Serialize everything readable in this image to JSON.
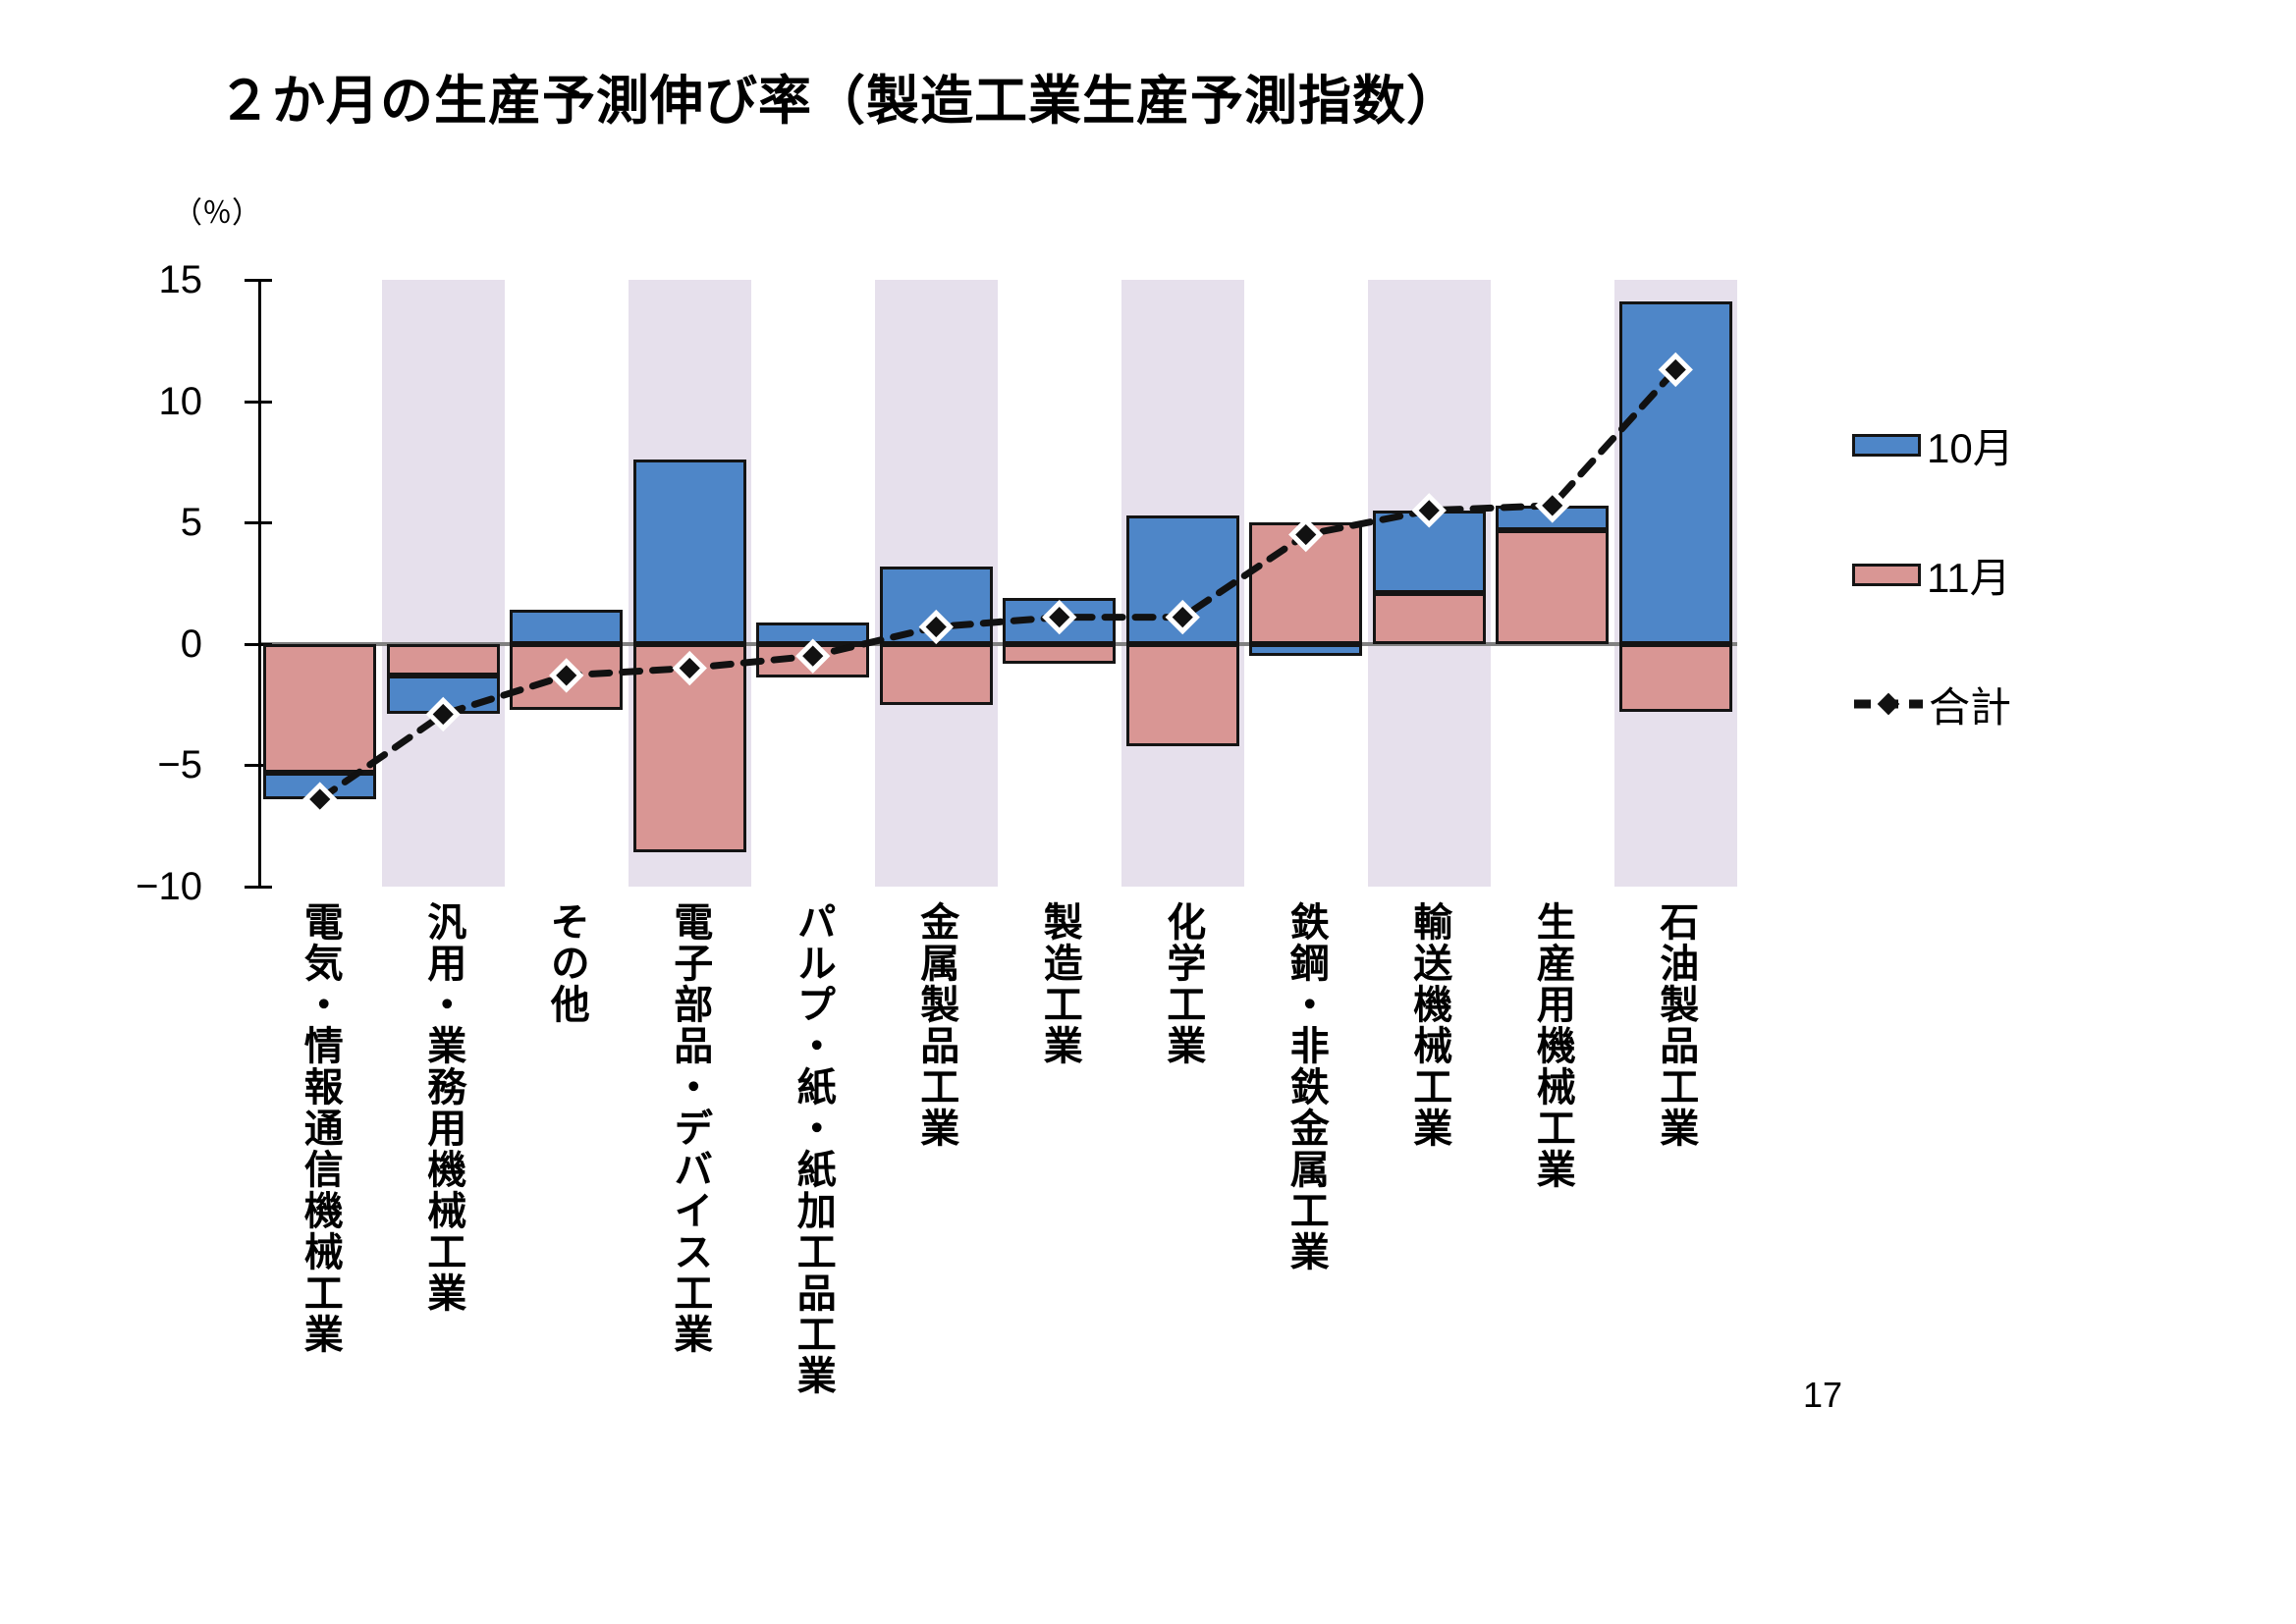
{
  "page": {
    "title": "２か月の生産予測伸び率（製造工業生産予測指数）",
    "page_number": "17"
  },
  "chart_data": {
    "type": "bar",
    "subtype": "stacked-bars-with-total-line",
    "title": "２か月の生産予測伸び率（製造工業生産予測指数）",
    "unit_label": "（％）",
    "xlabel": "",
    "ylabel": "%",
    "ylim": [
      -10,
      15
    ],
    "grid": false,
    "legend_position": "right",
    "band_fill": "#e6e0ec",
    "zero_line_color": "#808080",
    "y_ticks": [
      {
        "value": 15,
        "label": "15"
      },
      {
        "value": 10,
        "label": "10"
      },
      {
        "value": 5,
        "label": "5"
      },
      {
        "value": 0,
        "label": "0"
      },
      {
        "value": -5,
        "label": "−5"
      },
      {
        "value": -10,
        "label": "−10"
      }
    ],
    "categories": [
      "電気・情報通信機械工業",
      "汎用・業務用機械工業",
      "その他",
      "電子部品・デバイス工業",
      "パルプ・紙・紙加工品工業",
      "金属製品工業",
      "製造工業",
      "化学工業",
      "鉄鋼・非鉄金属工業",
      "輸送機械工業",
      "生産用機械工業",
      "石油製品工業"
    ],
    "series": [
      {
        "name": "10月",
        "kind": "bar",
        "color": "#4e86c8",
        "values": [
          -1.1,
          -1.6,
          1.4,
          7.6,
          0.9,
          3.2,
          1.9,
          5.3,
          -0.5,
          3.4,
          1.0,
          14.1
        ]
      },
      {
        "name": "11月",
        "kind": "bar",
        "color": "#d99694",
        "values": [
          -5.3,
          -1.3,
          -2.7,
          -8.6,
          -1.4,
          -2.5,
          -0.8,
          -4.2,
          5.0,
          2.1,
          4.7,
          -2.8
        ]
      },
      {
        "name": "合計",
        "kind": "line",
        "color": "#111111",
        "marker": "diamond",
        "values": [
          -6.4,
          -2.9,
          -1.3,
          -1.0,
          -0.5,
          0.7,
          1.1,
          1.1,
          4.5,
          5.5,
          5.7,
          11.3
        ]
      }
    ],
    "stacking_note": "bars of same sign stack (11月 segment adjacent to zero); opposite signs both start at zero; line = 10月+11月"
  },
  "legend": {
    "items": [
      {
        "label": "10月",
        "swatch": "blue-bar"
      },
      {
        "label": "11月",
        "swatch": "pink-bar"
      },
      {
        "label": "合計",
        "swatch": "dashed-line-diamond"
      }
    ]
  }
}
